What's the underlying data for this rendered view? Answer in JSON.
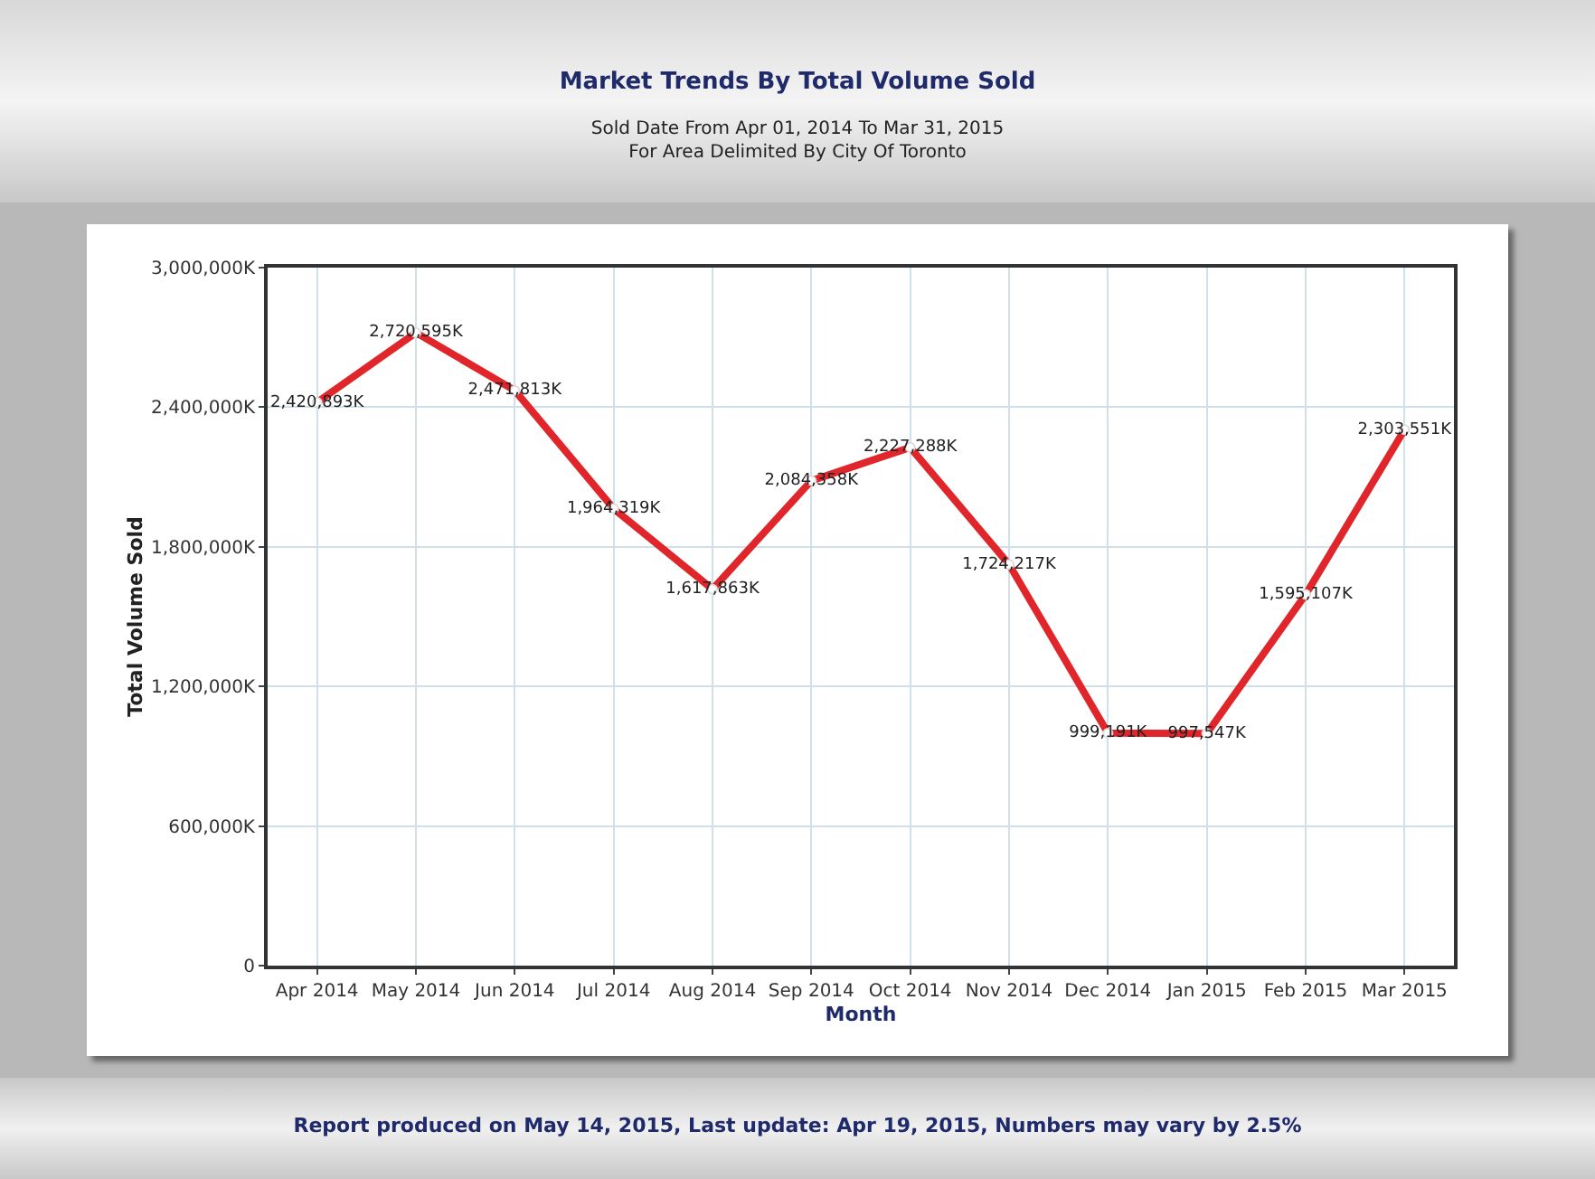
{
  "chart_data": {
    "type": "line",
    "title": "Market Trends By Total Volume Sold",
    "subtitle": "Sold Date From Apr 01, 2014 To Mar 31, 2015\nFor Area Delimited By City Of Toronto",
    "xlabel": "Month",
    "ylabel": "Total Volume Sold",
    "categories": [
      "Apr 2014",
      "May 2014",
      "Jun 2014",
      "Jul 2014",
      "Aug 2014",
      "Sep 2014",
      "Oct 2014",
      "Nov 2014",
      "Dec 2014",
      "Jan 2015",
      "Feb 2015",
      "Mar 2015"
    ],
    "series": [
      {
        "color": "#e0262a",
        "values": [
          2420893,
          2720595,
          2471813,
          1964319,
          1617863,
          2084358,
          2227288,
          1724217,
          999191,
          997547,
          1595107,
          2303551
        ],
        "value_labels": [
          "2,420,893K",
          "2,720,595K",
          "2,471,813K",
          "1,964,319K",
          "1,617,863K",
          "2,084,358K",
          "2,227,288K",
          "1,724,217K",
          "999,191K",
          "997,547K",
          "1,595,107K",
          "2,303,551K"
        ]
      }
    ],
    "ylim": [
      0,
      3000000
    ],
    "yticks": [
      0,
      {
        "value": 600000,
        "label": "600,000K"
      },
      {
        "value": 1200000,
        "label": "1,200,000K"
      },
      {
        "value": 1800000,
        "label": "1,800,000K"
      },
      {
        "value": 2400000,
        "label": "2,400,000K"
      },
      {
        "value": 3000000,
        "label": "3,000,000K"
      }
    ],
    "grid": true,
    "marker": "circle",
    "line_style": "solid",
    "annotations": [
      "Report produced on May 14, 2015, Last update: Apr 19, 2015,  Numbers may vary by 2.5%"
    ]
  }
}
